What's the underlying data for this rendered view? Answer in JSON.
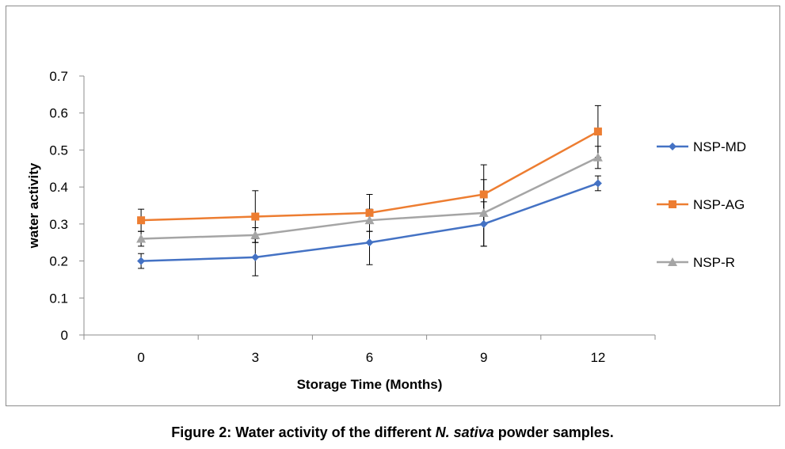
{
  "caption": {
    "prefix": "Figure 2: Water activity of the different ",
    "italic": "N. sativa",
    "suffix": " powder samples."
  },
  "chart_data": {
    "type": "line",
    "xlabel": "Storage Time (Months)",
    "ylabel": "water activity",
    "categories": [
      "0",
      "3",
      "6",
      "9",
      "12"
    ],
    "ylim": [
      0,
      0.7
    ],
    "yticks": [
      "0",
      "0.1",
      "0.2",
      "0.3",
      "0.4",
      "0.5",
      "0.6",
      "0.7"
    ],
    "grid": false,
    "legend_position": "right",
    "series": [
      {
        "name": "NSP-MD",
        "color": "#4472c4",
        "marker": "diamond",
        "values": [
          0.2,
          0.21,
          0.25,
          0.3,
          0.41
        ],
        "error": [
          0.02,
          0.05,
          0.06,
          0.06,
          0.02
        ]
      },
      {
        "name": "NSP-AG",
        "color": "#ed7d31",
        "marker": "square",
        "values": [
          0.31,
          0.32,
          0.33,
          0.38,
          0.55
        ],
        "error": [
          0.03,
          0.07,
          0.05,
          0.08,
          0.07
        ]
      },
      {
        "name": "NSP-R",
        "color": "#a5a5a5",
        "marker": "triangle",
        "values": [
          0.26,
          0.27,
          0.31,
          0.33,
          0.48
        ],
        "error": [
          0.02,
          0.02,
          0.03,
          0.09,
          0.03
        ]
      }
    ]
  }
}
